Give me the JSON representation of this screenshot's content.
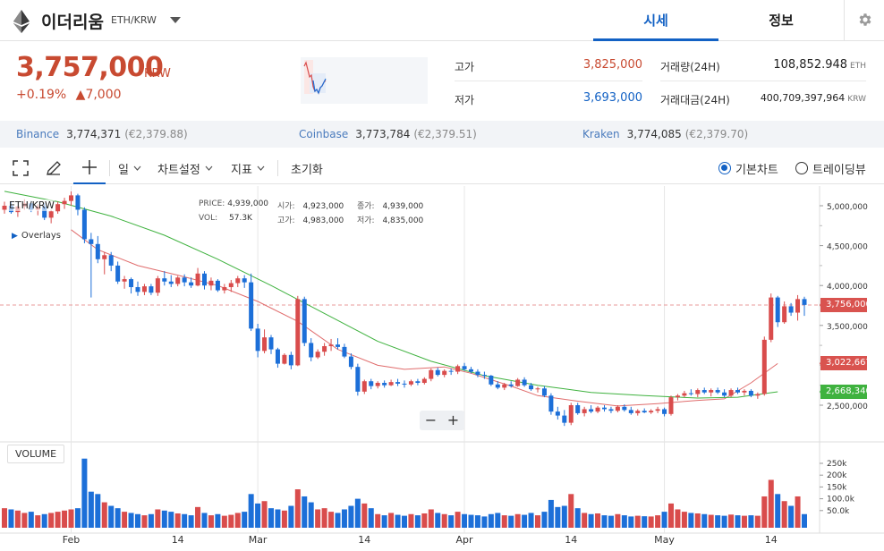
{
  "header": {
    "coin_name": "이더리움",
    "pair": "ETH/KRW",
    "icon": "ethereum-logo",
    "tabs": [
      {
        "label": "시세",
        "active": true
      },
      {
        "label": "정보",
        "active": false
      }
    ],
    "settings_icon": "gear-icon"
  },
  "price": {
    "current": "3,757,000",
    "unit": "KRW",
    "change_rate": "+0.19%",
    "change_arrow": "▲",
    "change_amount": "7,000",
    "color_up": "#c84a31"
  },
  "stats": {
    "high_label": "고가",
    "high_value": "3,825,000",
    "low_label": "저가",
    "low_value": "3,693,000",
    "volume_label": "거래량(24H)",
    "volume_value": "108,852.948",
    "volume_unit": "ETH",
    "amount_label": "거래대금(24H)",
    "amount_value": "400,709,397,964",
    "amount_unit": "KRW"
  },
  "exchanges": [
    {
      "name": "Binance",
      "price": "3,774,371",
      "eur": "(€2,379.88)"
    },
    {
      "name": "Coinbase",
      "price": "3,773,784",
      "eur": "(€2,379.51)"
    },
    {
      "name": "Kraken",
      "price": "3,774,085",
      "eur": "(€2,379.70)"
    }
  ],
  "toolbar": {
    "fullscreen_icon": "fullscreen-icon",
    "draw_icon": "pencil-icon",
    "crosshair_icon": "crosshair-icon",
    "interval": "일",
    "chart_settings": "차트설정",
    "indicators": "지표",
    "reset": "초기화",
    "basic_chart": "기본차트",
    "tradingview": "트레이딩뷰",
    "selected_view": "기본차트"
  },
  "chart_legend": {
    "symbol": "ETH/KRW",
    "overlays": "Overlays",
    "price_label": "PRICE:",
    "price_value": "4,939,000",
    "vol_label": "VOL:",
    "vol_value": "57.3K",
    "open_label": "시가:",
    "open_value": "4,923,000",
    "close_label": "종가:",
    "close_value": "4,939,000",
    "high_label": "고가:",
    "high_value": "4,983,000",
    "low_label": "저가:",
    "low_value": "4,835,000",
    "volume_pane_label": "VOLUME",
    "zoom_out": "−",
    "zoom_in": "+"
  },
  "chart_data": {
    "type": "candlestick",
    "price_axis_ticks": [
      "5,000,000",
      "4,500,000",
      "4,000,000",
      "3,500,000",
      "2,500,000"
    ],
    "price_axis_tick_values": [
      5000000,
      4500000,
      4000000,
      3500000,
      2500000
    ],
    "volume_axis_ticks": [
      "250k",
      "200k",
      "150k",
      "100.0k",
      "50.0k"
    ],
    "volume_axis_tick_values": [
      250000,
      200000,
      150000,
      100000,
      50000
    ],
    "x_ticks": [
      "Feb",
      "14",
      "Mar",
      "14",
      "Apr",
      "14",
      "May",
      "14"
    ],
    "x_tick_days": [
      10,
      26,
      38,
      54,
      69,
      85,
      99,
      115
    ],
    "markers": [
      {
        "label": "3,756,000",
        "value": 3756000,
        "color": "#d9534f",
        "dashed_line": true
      },
      {
        "label": "3,022,667",
        "value": 3022667,
        "color": "#d9534f"
      },
      {
        "label": "2,668,340",
        "value": 2668340,
        "color": "#3fb23f"
      }
    ],
    "ma_series": [
      {
        "color": "#e06c6c",
        "points": [
          [
            10,
            4700000
          ],
          [
            14,
            4450000
          ],
          [
            20,
            4250000
          ],
          [
            26,
            4130000
          ],
          [
            32,
            4000000
          ],
          [
            38,
            3800000
          ],
          [
            44,
            3550000
          ],
          [
            50,
            3200000
          ],
          [
            56,
            3000000
          ],
          [
            60,
            2950000
          ],
          [
            66,
            2980000
          ],
          [
            70,
            2900000
          ],
          [
            76,
            2740000
          ],
          [
            80,
            2620000
          ],
          [
            86,
            2550000
          ],
          [
            92,
            2490000
          ],
          [
            98,
            2520000
          ],
          [
            104,
            2560000
          ],
          [
            108,
            2580000
          ],
          [
            112,
            2780000
          ],
          [
            116,
            3022667
          ]
        ]
      },
      {
        "color": "#3fb23f",
        "points": [
          [
            0,
            5180000
          ],
          [
            8,
            5050000
          ],
          [
            16,
            4870000
          ],
          [
            24,
            4630000
          ],
          [
            32,
            4330000
          ],
          [
            40,
            4000000
          ],
          [
            48,
            3650000
          ],
          [
            56,
            3300000
          ],
          [
            64,
            3050000
          ],
          [
            72,
            2870000
          ],
          [
            80,
            2750000
          ],
          [
            88,
            2660000
          ],
          [
            96,
            2620000
          ],
          [
            104,
            2590000
          ],
          [
            110,
            2600000
          ],
          [
            116,
            2668340
          ]
        ]
      }
    ],
    "candles": [
      [
        0,
        4950000,
        5050000,
        4900000,
        5000000,
        60000
      ],
      [
        1,
        5000000,
        5050000,
        4900000,
        4920000,
        55000
      ],
      [
        2,
        4920000,
        5000000,
        4860000,
        4990000,
        50000
      ],
      [
        3,
        4990000,
        5080000,
        4950000,
        5030000,
        40000
      ],
      [
        4,
        5030000,
        5060000,
        4920000,
        4950000,
        45000
      ],
      [
        5,
        4950000,
        5020000,
        4880000,
        4990000,
        30000
      ],
      [
        6,
        4990000,
        5030000,
        4820000,
        4850000,
        35000
      ],
      [
        7,
        4850000,
        4950000,
        4780000,
        4930000,
        40000
      ],
      [
        8,
        4930000,
        5050000,
        4900000,
        5020000,
        45000
      ],
      [
        9,
        5020000,
        5100000,
        4960000,
        5060000,
        50000
      ],
      [
        10,
        5060000,
        5180000,
        5000000,
        5130000,
        55000
      ],
      [
        11,
        5130000,
        5150000,
        4880000,
        4950000,
        60000
      ],
      [
        12,
        4950000,
        4980000,
        4530000,
        4580000,
        270000
      ],
      [
        13,
        4580000,
        4660000,
        3850000,
        4520000,
        130000
      ],
      [
        14,
        4520000,
        4620000,
        4280000,
        4330000,
        120000
      ],
      [
        15,
        4330000,
        4420000,
        4140000,
        4380000,
        85000
      ],
      [
        16,
        4380000,
        4420000,
        4180000,
        4250000,
        70000
      ],
      [
        17,
        4250000,
        4300000,
        4020000,
        4050000,
        60000
      ],
      [
        18,
        4050000,
        4120000,
        3960000,
        4080000,
        45000
      ],
      [
        19,
        4080000,
        4100000,
        3900000,
        3980000,
        40000
      ],
      [
        20,
        3980000,
        4050000,
        3870000,
        3920000,
        35000
      ],
      [
        21,
        3920000,
        4020000,
        3880000,
        3990000,
        30000
      ],
      [
        22,
        3990000,
        4020000,
        3880000,
        3910000,
        35000
      ],
      [
        23,
        3910000,
        4120000,
        3870000,
        4090000,
        55000
      ],
      [
        24,
        4090000,
        4180000,
        4000000,
        4050000,
        50000
      ],
      [
        25,
        4050000,
        4130000,
        3980000,
        4020000,
        45000
      ],
      [
        26,
        4020000,
        4120000,
        3990000,
        4100000,
        38000
      ],
      [
        27,
        4100000,
        4140000,
        3990000,
        4040000,
        35000
      ],
      [
        28,
        4040000,
        4100000,
        3970000,
        4000000,
        30000
      ],
      [
        29,
        4000000,
        4220000,
        3990000,
        4150000,
        65000
      ],
      [
        30,
        4150000,
        4180000,
        3950000,
        4000000,
        40000
      ],
      [
        31,
        4000000,
        4100000,
        3940000,
        4060000,
        30000
      ],
      [
        32,
        4060000,
        4080000,
        3920000,
        3940000,
        35000
      ],
      [
        33,
        3940000,
        4020000,
        3900000,
        3980000,
        28000
      ],
      [
        34,
        3980000,
        4070000,
        3920000,
        4030000,
        32000
      ],
      [
        35,
        4030000,
        4120000,
        3980000,
        4090000,
        40000
      ],
      [
        36,
        4090000,
        4130000,
        3970000,
        4040000,
        45000
      ],
      [
        37,
        4040000,
        4150000,
        3430000,
        3460000,
        120000
      ],
      [
        38,
        3460000,
        3520000,
        3100000,
        3180000,
        80000
      ],
      [
        39,
        3180000,
        3450000,
        3150000,
        3350000,
        90000
      ],
      [
        40,
        3350000,
        3380000,
        3140000,
        3200000,
        60000
      ],
      [
        41,
        3200000,
        3220000,
        2970000,
        3020000,
        55000
      ],
      [
        42,
        3020000,
        3150000,
        3010000,
        3130000,
        50000
      ],
      [
        43,
        3130000,
        3170000,
        2950000,
        3000000,
        70000
      ],
      [
        44,
        3000000,
        3870000,
        2990000,
        3830000,
        140000
      ],
      [
        45,
        3830000,
        3860000,
        3240000,
        3280000,
        110000
      ],
      [
        46,
        3280000,
        3340000,
        3050000,
        3100000,
        85000
      ],
      [
        47,
        3100000,
        3200000,
        3080000,
        3170000,
        55000
      ],
      [
        48,
        3170000,
        3280000,
        3120000,
        3240000,
        60000
      ],
      [
        49,
        3240000,
        3330000,
        3180000,
        3260000,
        45000
      ],
      [
        50,
        3260000,
        3340000,
        3200000,
        3230000,
        40000
      ],
      [
        51,
        3230000,
        3270000,
        3090000,
        3110000,
        55000
      ],
      [
        52,
        3110000,
        3150000,
        2950000,
        2980000,
        70000
      ],
      [
        53,
        2980000,
        3020000,
        2620000,
        2670000,
        100000
      ],
      [
        54,
        2670000,
        2820000,
        2640000,
        2800000,
        80000
      ],
      [
        55,
        2800000,
        2830000,
        2700000,
        2740000,
        60000
      ],
      [
        56,
        2740000,
        2800000,
        2710000,
        2780000,
        35000
      ],
      [
        57,
        2780000,
        2810000,
        2720000,
        2750000,
        30000
      ],
      [
        58,
        2750000,
        2820000,
        2740000,
        2790000,
        40000
      ],
      [
        59,
        2790000,
        2830000,
        2740000,
        2770000,
        32000
      ],
      [
        60,
        2770000,
        2810000,
        2720000,
        2760000,
        28000
      ],
      [
        61,
        2760000,
        2820000,
        2740000,
        2800000,
        35000
      ],
      [
        62,
        2800000,
        2830000,
        2750000,
        2780000,
        30000
      ],
      [
        63,
        2780000,
        2850000,
        2760000,
        2830000,
        38000
      ],
      [
        64,
        2830000,
        2960000,
        2800000,
        2940000,
        55000
      ],
      [
        65,
        2940000,
        2970000,
        2860000,
        2880000,
        40000
      ],
      [
        66,
        2880000,
        2950000,
        2850000,
        2930000,
        35000
      ],
      [
        67,
        2930000,
        2960000,
        2880000,
        2920000,
        30000
      ],
      [
        68,
        2920000,
        3010000,
        2890000,
        2990000,
        45000
      ],
      [
        69,
        2990000,
        3030000,
        2930000,
        2950000,
        35000
      ],
      [
        70,
        2950000,
        2980000,
        2900000,
        2920000,
        32000
      ],
      [
        71,
        2920000,
        2950000,
        2850000,
        2880000,
        30000
      ],
      [
        72,
        2880000,
        2920000,
        2830000,
        2870000,
        25000
      ],
      [
        73,
        2870000,
        2880000,
        2740000,
        2760000,
        35000
      ],
      [
        74,
        2760000,
        2800000,
        2700000,
        2720000,
        40000
      ],
      [
        75,
        2720000,
        2780000,
        2690000,
        2760000,
        30000
      ],
      [
        76,
        2760000,
        2800000,
        2720000,
        2740000,
        28000
      ],
      [
        77,
        2740000,
        2840000,
        2730000,
        2820000,
        35000
      ],
      [
        78,
        2820000,
        2850000,
        2730000,
        2750000,
        32000
      ],
      [
        79,
        2750000,
        2780000,
        2680000,
        2700000,
        40000
      ],
      [
        80,
        2700000,
        2730000,
        2660000,
        2710000,
        30000
      ],
      [
        81,
        2710000,
        2740000,
        2600000,
        2620000,
        45000
      ],
      [
        82,
        2620000,
        2650000,
        2380000,
        2420000,
        95000
      ],
      [
        83,
        2420000,
        2480000,
        2320000,
        2370000,
        65000
      ],
      [
        84,
        2370000,
        2440000,
        2240000,
        2280000,
        70000
      ],
      [
        85,
        2280000,
        2530000,
        2250000,
        2500000,
        120000
      ],
      [
        86,
        2500000,
        2530000,
        2380000,
        2400000,
        60000
      ],
      [
        87,
        2400000,
        2480000,
        2360000,
        2450000,
        40000
      ],
      [
        88,
        2450000,
        2500000,
        2400000,
        2420000,
        35000
      ],
      [
        89,
        2420000,
        2490000,
        2400000,
        2470000,
        38000
      ],
      [
        90,
        2470000,
        2500000,
        2420000,
        2450000,
        30000
      ],
      [
        91,
        2450000,
        2480000,
        2400000,
        2430000,
        28000
      ],
      [
        92,
        2430000,
        2500000,
        2410000,
        2480000,
        35000
      ],
      [
        93,
        2480000,
        2510000,
        2420000,
        2440000,
        30000
      ],
      [
        94,
        2440000,
        2480000,
        2380000,
        2400000,
        25000
      ],
      [
        95,
        2400000,
        2450000,
        2370000,
        2430000,
        28000
      ],
      [
        96,
        2430000,
        2460000,
        2400000,
        2410000,
        26000
      ],
      [
        97,
        2410000,
        2450000,
        2390000,
        2430000,
        25000
      ],
      [
        98,
        2430000,
        2480000,
        2400000,
        2450000,
        30000
      ],
      [
        99,
        2450000,
        2470000,
        2360000,
        2390000,
        45000
      ],
      [
        100,
        2390000,
        2620000,
        2370000,
        2600000,
        80000
      ],
      [
        101,
        2600000,
        2640000,
        2560000,
        2620000,
        55000
      ],
      [
        102,
        2620000,
        2680000,
        2600000,
        2650000,
        45000
      ],
      [
        103,
        2650000,
        2700000,
        2620000,
        2640000,
        40000
      ],
      [
        104,
        2640000,
        2710000,
        2600000,
        2690000,
        38000
      ],
      [
        105,
        2690000,
        2720000,
        2640000,
        2660000,
        35000
      ],
      [
        106,
        2660000,
        2710000,
        2610000,
        2690000,
        32000
      ],
      [
        107,
        2690000,
        2720000,
        2640000,
        2660000,
        30000
      ],
      [
        108,
        2660000,
        2700000,
        2600000,
        2620000,
        28000
      ],
      [
        109,
        2620000,
        2710000,
        2600000,
        2690000,
        33000
      ],
      [
        110,
        2690000,
        2720000,
        2640000,
        2660000,
        30000
      ],
      [
        111,
        2660000,
        2700000,
        2620000,
        2680000,
        28000
      ],
      [
        112,
        2680000,
        2700000,
        2600000,
        2620000,
        30000
      ],
      [
        113,
        2620000,
        2660000,
        2580000,
        2640000,
        28000
      ],
      [
        114,
        2640000,
        3360000,
        2620000,
        3320000,
        110000
      ],
      [
        115,
        3320000,
        3900000,
        3290000,
        3850000,
        180000
      ],
      [
        116,
        3850000,
        3870000,
        3480000,
        3540000,
        120000
      ],
      [
        117,
        3540000,
        3800000,
        3520000,
        3740000,
        90000
      ],
      [
        118,
        3740000,
        3780000,
        3620000,
        3660000,
        70000
      ],
      [
        119,
        3660000,
        3880000,
        3560000,
        3830000,
        110000
      ],
      [
        120,
        3830000,
        3860000,
        3620000,
        3757000,
        35000
      ]
    ],
    "up_color": "#d94c4c",
    "down_color": "#1c6fd8"
  }
}
